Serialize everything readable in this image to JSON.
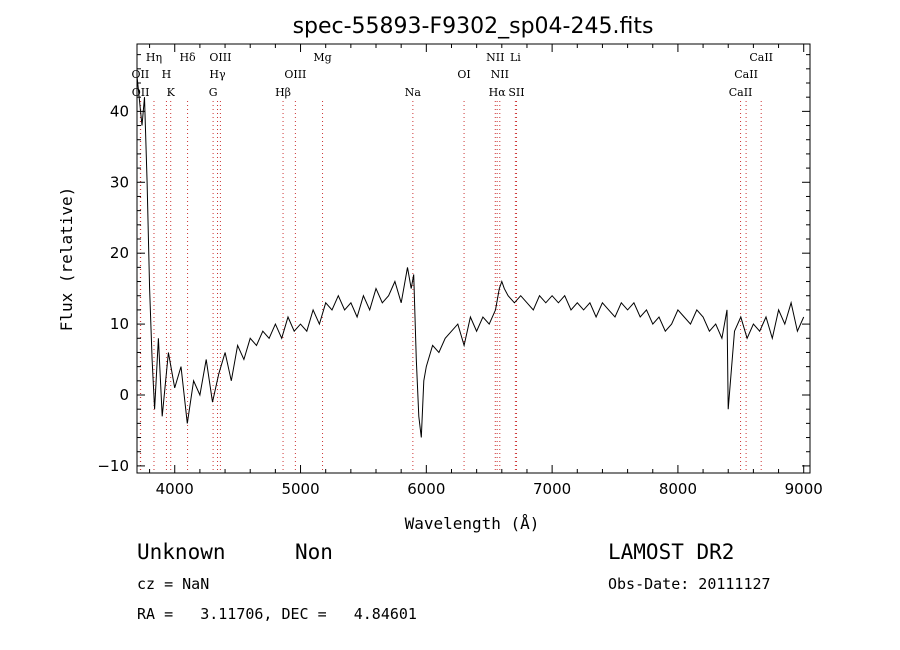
{
  "chart_data": {
    "type": "line",
    "title": "spec-55893-F9302_sp04-245.fits",
    "xlabel": "Wavelength (Å)",
    "ylabel": "Flux (relative)",
    "xlim": [
      3700,
      9050
    ],
    "ylim": [
      -11,
      49.5
    ],
    "xticks": [
      4000,
      5000,
      6000,
      7000,
      8000,
      9000
    ],
    "yticks": [
      -10,
      0,
      10,
      20,
      30,
      40
    ],
    "grid": false,
    "series": [
      {
        "x": [
          3700,
          3740,
          3760,
          3780,
          3800,
          3820,
          3840,
          3870,
          3900,
          3950,
          4000,
          4050,
          4100,
          4150,
          4200,
          4250,
          4300,
          4350,
          4400,
          4450,
          4500,
          4550,
          4600,
          4650,
          4700,
          4750,
          4800,
          4850,
          4900,
          4950,
          5000,
          5050,
          5100,
          5150,
          5200,
          5250,
          5300,
          5350,
          5400,
          5450,
          5500,
          5550,
          5600,
          5650,
          5700,
          5750,
          5800,
          5850,
          5880,
          5900,
          5920,
          5940,
          5960,
          5980,
          6000,
          6050,
          6100,
          6150,
          6200,
          6250,
          6300,
          6350,
          6400,
          6450,
          6500,
          6550,
          6580,
          6600,
          6620,
          6650,
          6700,
          6750,
          6800,
          6850,
          6900,
          6950,
          7000,
          7050,
          7100,
          7150,
          7200,
          7250,
          7300,
          7350,
          7400,
          7450,
          7500,
          7550,
          7600,
          7650,
          7700,
          7750,
          7800,
          7850,
          7900,
          7950,
          8000,
          8050,
          8100,
          8150,
          8200,
          8250,
          8300,
          8350,
          8390,
          8400,
          8450,
          8500,
          8550,
          8600,
          8650,
          8700,
          8750,
          8800,
          8850,
          8900,
          8950,
          9000
        ],
        "y": [
          45,
          38,
          42,
          30,
          15,
          5,
          -2,
          8,
          -3,
          6,
          1,
          4,
          -4,
          2,
          0,
          5,
          -1,
          3,
          6,
          2,
          7,
          5,
          8,
          7,
          9,
          8,
          10,
          8,
          11,
          9,
          10,
          9,
          12,
          10,
          13,
          12,
          14,
          12,
          13,
          11,
          14,
          12,
          15,
          13,
          14,
          16,
          13,
          18,
          15,
          17,
          5,
          -3,
          -6,
          2,
          4,
          7,
          6,
          8,
          9,
          10,
          7,
          11,
          9,
          11,
          10,
          12,
          15,
          16,
          15,
          14,
          13,
          14,
          13,
          12,
          14,
          13,
          14,
          13,
          14,
          12,
          13,
          12,
          13,
          11,
          13,
          12,
          11,
          13,
          12,
          13,
          11,
          12,
          10,
          11,
          9,
          10,
          12,
          11,
          10,
          12,
          11,
          9,
          10,
          8,
          12,
          -2,
          9,
          11,
          8,
          10,
          9,
          11,
          8,
          12,
          10,
          13,
          9,
          11
        ]
      }
    ],
    "lines": [
      {
        "label": "OII",
        "x": 3727,
        "row": 2
      },
      {
        "label": "OII",
        "x": 3729,
        "row": 3
      },
      {
        "label": "Hη",
        "x": 3835,
        "row": 1
      },
      {
        "label": "H",
        "x": 3934,
        "row": 2
      },
      {
        "label": "K",
        "x": 3968,
        "row": 3
      },
      {
        "label": "Hδ",
        "x": 4102,
        "row": 1
      },
      {
        "label": "OIII",
        "x": 4363,
        "row": 1
      },
      {
        "label": "Hγ",
        "x": 4340,
        "row": 2
      },
      {
        "label": "G",
        "x": 4305,
        "row": 3
      },
      {
        "label": "Mg",
        "x": 5175,
        "row": 1
      },
      {
        "label": "OIII",
        "x": 4959,
        "row": 2
      },
      {
        "label": "Hβ",
        "x": 4861,
        "row": 3
      },
      {
        "label": "Na",
        "x": 5893,
        "row": 3
      },
      {
        "label": "OI",
        "x": 6300,
        "row": 2
      },
      {
        "label": "NII",
        "x": 6548,
        "row": 1
      },
      {
        "label": "NII",
        "x": 6584,
        "row": 2
      },
      {
        "label": "Hα",
        "x": 6563,
        "row": 3
      },
      {
        "label": "Li",
        "x": 6708,
        "row": 1
      },
      {
        "label": "SII",
        "x": 6717,
        "row": 3
      },
      {
        "label": "CaII",
        "x": 8662,
        "row": 1
      },
      {
        "label": "CaII",
        "x": 8542,
        "row": 2
      },
      {
        "label": "CaII",
        "x": 8498,
        "row": 3
      }
    ]
  },
  "info": {
    "class": "Unknown",
    "subclass": "Non",
    "survey": "LAMOST DR2",
    "cz": "cz = NaN",
    "obs_date": "Obs-Date: 20111127",
    "coords": "RA =   3.11706, DEC =   4.84601"
  }
}
